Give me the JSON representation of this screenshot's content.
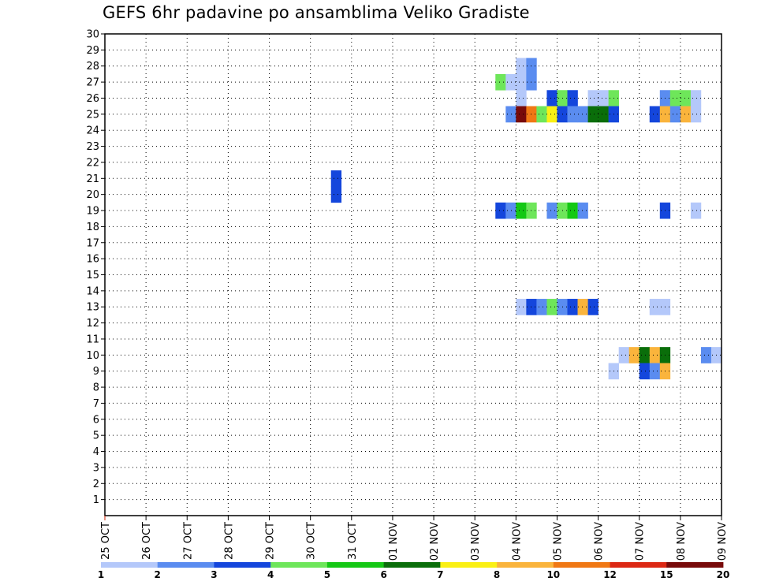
{
  "chart_data": {
    "type": "heatmap",
    "title": "GEFS 6hr padavine po ansamblima Veliko Gradiste",
    "x_tick_labels": [
      "25 OCT",
      "26 OCT",
      "27 OCT",
      "28 OCT",
      "29 OCT",
      "30 OCT",
      "31 OCT",
      "01 NOV",
      "02 NOV",
      "03 NOV",
      "04 NOV",
      "05 NOV",
      "06 NOV",
      "07 NOV",
      "08 NOV",
      "09 NOV"
    ],
    "x_range": [
      "25 OCT 00z",
      "09 NOV 00z"
    ],
    "y_range": [
      0,
      30
    ],
    "y_ticks": [
      1,
      2,
      3,
      4,
      5,
      6,
      7,
      8,
      9,
      10,
      11,
      12,
      13,
      14,
      15,
      16,
      17,
      18,
      19,
      20,
      21,
      22,
      23,
      24,
      25,
      26,
      27,
      28,
      29,
      30
    ],
    "grid": "dotted",
    "legend": {
      "placement": "bottom",
      "colors": [
        "#b4c8fa",
        "#5a8cf0",
        "#1446dc",
        "#6ee65a",
        "#14c814",
        "#0a6e0a",
        "#faf014",
        "#fab43c",
        "#f07814",
        "#dc2814",
        "#780a0a"
      ],
      "labels": [
        "1",
        "2",
        "3",
        "4",
        "5",
        "6",
        "7",
        "8",
        "10",
        "12",
        "15",
        "20"
      ]
    },
    "cells": [
      {
        "time": "30 OCT 12z",
        "member": 21,
        "color": "#1446dc"
      },
      {
        "time": "30 OCT 12z",
        "member": 20,
        "color": "#1446dc"
      },
      {
        "time": "04 NOV 00z",
        "member": 28,
        "color": "#b4c8fa"
      },
      {
        "time": "04 NOV 06z",
        "member": 28,
        "color": "#5a8cf0"
      },
      {
        "time": "04 NOV 00z",
        "member": 27,
        "color": "#b4c8fa"
      },
      {
        "time": "04 NOV 06z",
        "member": 27,
        "color": "#5a8cf0"
      },
      {
        "time": "03 NOV 12z",
        "member": 27,
        "color": "#6ee65a"
      },
      {
        "time": "03 NOV 18z",
        "member": 27,
        "color": "#b4c8fa"
      },
      {
        "time": "04 NOV 00z",
        "member": 26,
        "color": "#b4c8fa"
      },
      {
        "time": "04 NOV 18z",
        "member": 26,
        "color": "#1446dc"
      },
      {
        "time": "05 NOV 00z",
        "member": 26,
        "color": "#6ee65a"
      },
      {
        "time": "05 NOV 06z",
        "member": 26,
        "color": "#1446dc"
      },
      {
        "time": "05 NOV 18z",
        "member": 26,
        "color": "#b4c8fa"
      },
      {
        "time": "06 NOV 00z",
        "member": 26,
        "color": "#b4c8fa"
      },
      {
        "time": "06 NOV 06z",
        "member": 26,
        "color": "#6ee65a"
      },
      {
        "time": "07 NOV 12z",
        "member": 26,
        "color": "#5a8cf0"
      },
      {
        "time": "07 NOV 18z",
        "member": 26,
        "color": "#6ee65a"
      },
      {
        "time": "08 NOV 00z",
        "member": 26,
        "color": "#6ee65a"
      },
      {
        "time": "08 NOV 06z",
        "member": 26,
        "color": "#b4c8fa"
      },
      {
        "time": "03 NOV 18z",
        "member": 25,
        "color": "#5a8cf0"
      },
      {
        "time": "04 NOV 00z",
        "member": 25,
        "color": "#780a0a"
      },
      {
        "time": "04 NOV 06z",
        "member": 25,
        "color": "#f07814"
      },
      {
        "time": "04 NOV 12z",
        "member": 25,
        "color": "#6ee65a"
      },
      {
        "time": "04 NOV 18z",
        "member": 25,
        "color": "#faf014"
      },
      {
        "time": "05 NOV 00z",
        "member": 25,
        "color": "#1446dc"
      },
      {
        "time": "05 NOV 06z",
        "member": 25,
        "color": "#5a8cf0"
      },
      {
        "time": "05 NOV 12z",
        "member": 25,
        "color": "#5a8cf0"
      },
      {
        "time": "05 NOV 18z",
        "member": 25,
        "color": "#0a6e0a"
      },
      {
        "time": "06 NOV 00z",
        "member": 25,
        "color": "#0a6e0a"
      },
      {
        "time": "06 NOV 06z",
        "member": 25,
        "color": "#1446dc"
      },
      {
        "time": "07 NOV 06z",
        "member": 25,
        "color": "#1446dc"
      },
      {
        "time": "07 NOV 12z",
        "member": 25,
        "color": "#fab43c"
      },
      {
        "time": "07 NOV 18z",
        "member": 25,
        "color": "#5a8cf0"
      },
      {
        "time": "08 NOV 00z",
        "member": 25,
        "color": "#fab43c"
      },
      {
        "time": "08 NOV 06z",
        "member": 25,
        "color": "#b4c8fa"
      },
      {
        "time": "03 NOV 12z",
        "member": 19,
        "color": "#1446dc"
      },
      {
        "time": "03 NOV 18z",
        "member": 19,
        "color": "#5a8cf0"
      },
      {
        "time": "04 NOV 00z",
        "member": 19,
        "color": "#14c814"
      },
      {
        "time": "04 NOV 06z",
        "member": 19,
        "color": "#6ee65a"
      },
      {
        "time": "04 NOV 18z",
        "member": 19,
        "color": "#5a8cf0"
      },
      {
        "time": "05 NOV 00z",
        "member": 19,
        "color": "#6ee65a"
      },
      {
        "time": "05 NOV 06z",
        "member": 19,
        "color": "#14c814"
      },
      {
        "time": "05 NOV 12z",
        "member": 19,
        "color": "#5a8cf0"
      },
      {
        "time": "07 NOV 12z",
        "member": 19,
        "color": "#1446dc"
      },
      {
        "time": "08 NOV 06z",
        "member": 19,
        "color": "#b4c8fa"
      },
      {
        "time": "04 NOV 00z",
        "member": 13,
        "color": "#b4c8fa"
      },
      {
        "time": "04 NOV 06z",
        "member": 13,
        "color": "#1446dc"
      },
      {
        "time": "04 NOV 12z",
        "member": 13,
        "color": "#5a8cf0"
      },
      {
        "time": "04 NOV 18z",
        "member": 13,
        "color": "#6ee65a"
      },
      {
        "time": "05 NOV 00z",
        "member": 13,
        "color": "#5a8cf0"
      },
      {
        "time": "05 NOV 06z",
        "member": 13,
        "color": "#1446dc"
      },
      {
        "time": "05 NOV 12z",
        "member": 13,
        "color": "#fab43c"
      },
      {
        "time": "05 NOV 18z",
        "member": 13,
        "color": "#1446dc"
      },
      {
        "time": "07 NOV 06z",
        "member": 13,
        "color": "#b4c8fa"
      },
      {
        "time": "07 NOV 12z",
        "member": 13,
        "color": "#b4c8fa"
      },
      {
        "time": "06 NOV 12z",
        "member": 10,
        "color": "#b4c8fa"
      },
      {
        "time": "06 NOV 18z",
        "member": 10,
        "color": "#fab43c"
      },
      {
        "time": "07 NOV 00z",
        "member": 10,
        "color": "#0a6e0a"
      },
      {
        "time": "07 NOV 06z",
        "member": 10,
        "color": "#fab43c"
      },
      {
        "time": "07 NOV 12z",
        "member": 10,
        "color": "#0a6e0a"
      },
      {
        "time": "08 NOV 12z",
        "member": 10,
        "color": "#5a8cf0"
      },
      {
        "time": "08 NOV 18z",
        "member": 10,
        "color": "#b4c8fa"
      },
      {
        "time": "06 NOV 06z",
        "member": 9,
        "color": "#b4c8fa"
      },
      {
        "time": "07 NOV 00z",
        "member": 9,
        "color": "#1446dc"
      },
      {
        "time": "07 NOV 06z",
        "member": 9,
        "color": "#5a8cf0"
      },
      {
        "time": "07 NOV 12z",
        "member": 9,
        "color": "#fab43c"
      }
    ]
  }
}
